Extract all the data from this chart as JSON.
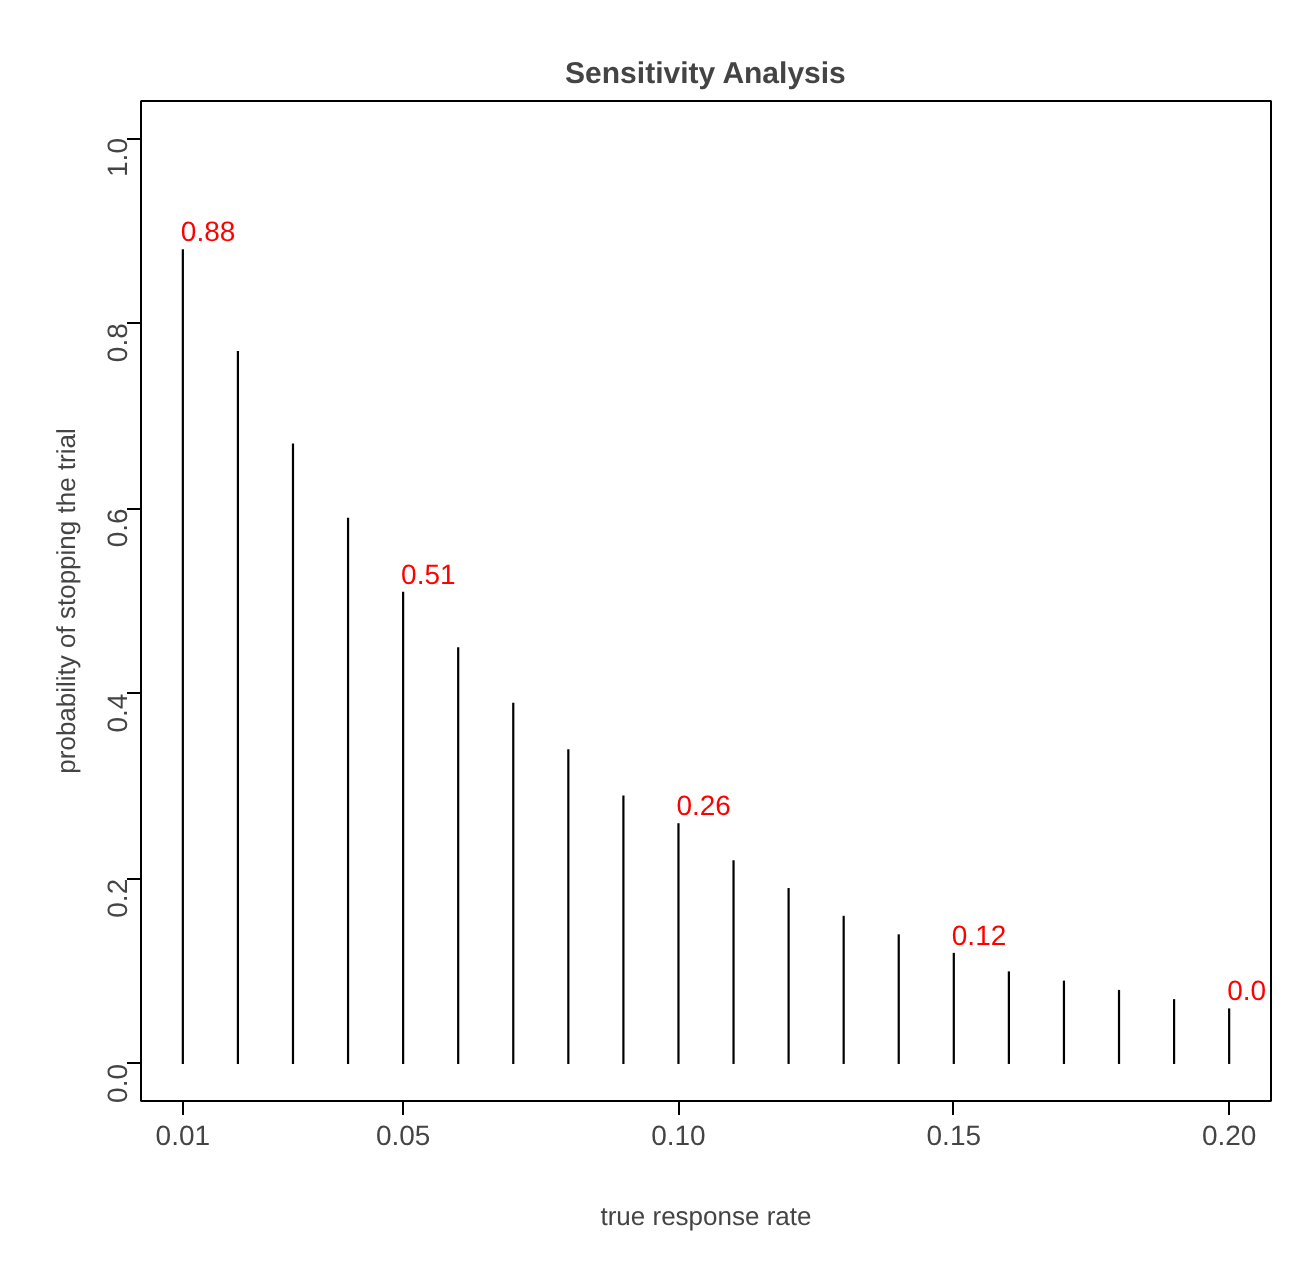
{
  "chart_data": {
    "type": "bar",
    "title": "Sensitivity Analysis",
    "xlabel": "true response rate",
    "ylabel": "probability of stopping the trial",
    "x": [
      0.01,
      0.02,
      0.03,
      0.04,
      0.05,
      0.06,
      0.07,
      0.08,
      0.09,
      0.1,
      0.11,
      0.12,
      0.13,
      0.14,
      0.15,
      0.16,
      0.17,
      0.18,
      0.19,
      0.2
    ],
    "values": [
      0.88,
      0.77,
      0.67,
      0.59,
      0.51,
      0.45,
      0.39,
      0.34,
      0.29,
      0.26,
      0.22,
      0.19,
      0.16,
      0.14,
      0.12,
      0.1,
      0.09,
      0.08,
      0.07,
      0.06
    ],
    "color": "#000000",
    "xlim": [
      0.0024,
      0.2076
    ],
    "ylim": [
      -0.04,
      1.04
    ],
    "xticks": [
      0.01,
      0.05,
      {
        "value": 0.1,
        "label": "0.10"
      },
      0.15,
      {
        "value": 0.2,
        "label": "0.20"
      }
    ],
    "yticks": [
      {
        "value": 0,
        "label": "0.0"
      },
      0.2,
      0.4,
      0.6,
      0.8,
      {
        "value": 1,
        "label": "1.0"
      }
    ],
    "annotations": [
      {
        "text": "0.88",
        "x": 0.01,
        "y": 0.88
      },
      {
        "text": "0.51",
        "x": 0.05,
        "y": 0.51
      },
      {
        "text": "0.26",
        "x": 0.1,
        "y": 0.26
      },
      {
        "text": "0.12",
        "x": 0.15,
        "y": 0.12
      },
      {
        "text": "0.0",
        "x": 0.2,
        "y": 0.06
      }
    ],
    "grid": false
  }
}
